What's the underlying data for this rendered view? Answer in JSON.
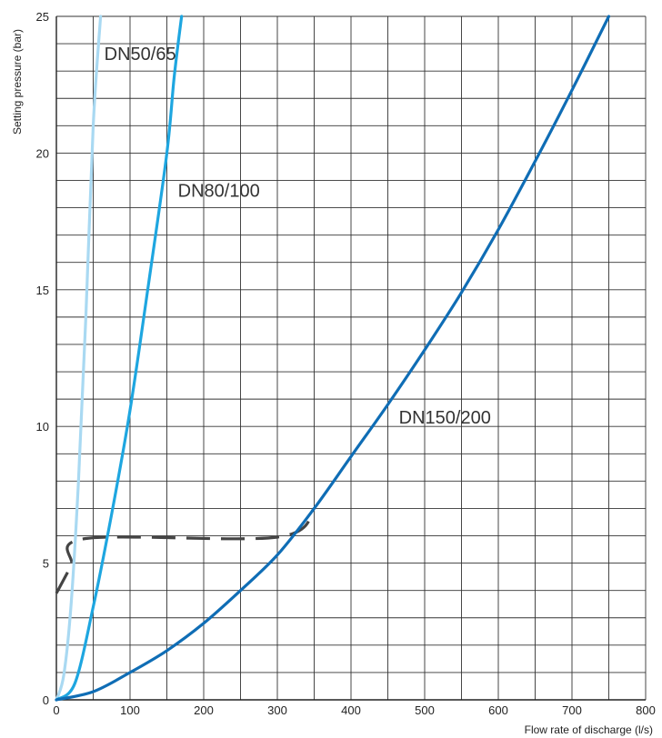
{
  "chart_data": {
    "type": "line",
    "title": "",
    "xlabel": "Flow rate of discharge (l/s)",
    "ylabel": "Setting pressure (bar)",
    "xlim": [
      0,
      800
    ],
    "ylim": [
      0,
      25
    ],
    "x_ticks": [
      "0",
      "100",
      "200",
      "300",
      "400",
      "500",
      "600",
      "700",
      "800"
    ],
    "y_ticks": [
      "0",
      "5",
      "10",
      "15",
      "20",
      "25"
    ],
    "x_tick_values": [
      0,
      100,
      200,
      300,
      400,
      500,
      600,
      700,
      800
    ],
    "y_tick_values": [
      0,
      5,
      10,
      15,
      20,
      25
    ],
    "grid": true,
    "series": [
      {
        "name": "DN50/65",
        "color": "#a9d9f2",
        "points": [
          [
            0,
            0
          ],
          [
            10,
            0.9
          ],
          [
            20,
            3.5
          ],
          [
            30,
            8.0
          ],
          [
            40,
            14.0
          ],
          [
            50,
            21.0
          ],
          [
            60,
            25.0
          ]
        ]
      },
      {
        "name": "DN80/100",
        "color": "#1ea6e0",
        "points": [
          [
            0,
            0
          ],
          [
            25,
            0.6
          ],
          [
            50,
            3.4
          ],
          [
            75,
            6.8
          ],
          [
            100,
            10.6
          ],
          [
            125,
            15.2
          ],
          [
            150,
            20.0
          ],
          [
            160,
            22.8
          ],
          [
            170,
            25.0
          ]
        ]
      },
      {
        "name": "DN150/200",
        "color": "#0f6db5",
        "points": [
          [
            0,
            0
          ],
          [
            50,
            0.3
          ],
          [
            100,
            1.0
          ],
          [
            150,
            1.8
          ],
          [
            200,
            2.8
          ],
          [
            250,
            4.0
          ],
          [
            300,
            5.3
          ],
          [
            350,
            7.0
          ],
          [
            400,
            8.9
          ],
          [
            450,
            10.8
          ],
          [
            500,
            12.8
          ],
          [
            550,
            14.9
          ],
          [
            600,
            17.2
          ],
          [
            650,
            19.7
          ],
          [
            700,
            22.3
          ],
          [
            750,
            25.0
          ]
        ]
      }
    ],
    "reference_line": {
      "style": "dashed",
      "color": "#444444",
      "points": [
        [
          0,
          3.9
        ],
        [
          20,
          4.9
        ],
        [
          40,
          5.9
        ],
        [
          300,
          5.95
        ],
        [
          350,
          7.0
        ]
      ]
    },
    "annotations": [
      {
        "text": "DN50/65",
        "x": 65,
        "y": 23.4
      },
      {
        "text": "DN80/100",
        "x": 165,
        "y": 18.4
      },
      {
        "text": "DN150/200",
        "x": 465,
        "y": 10.1
      }
    ]
  }
}
